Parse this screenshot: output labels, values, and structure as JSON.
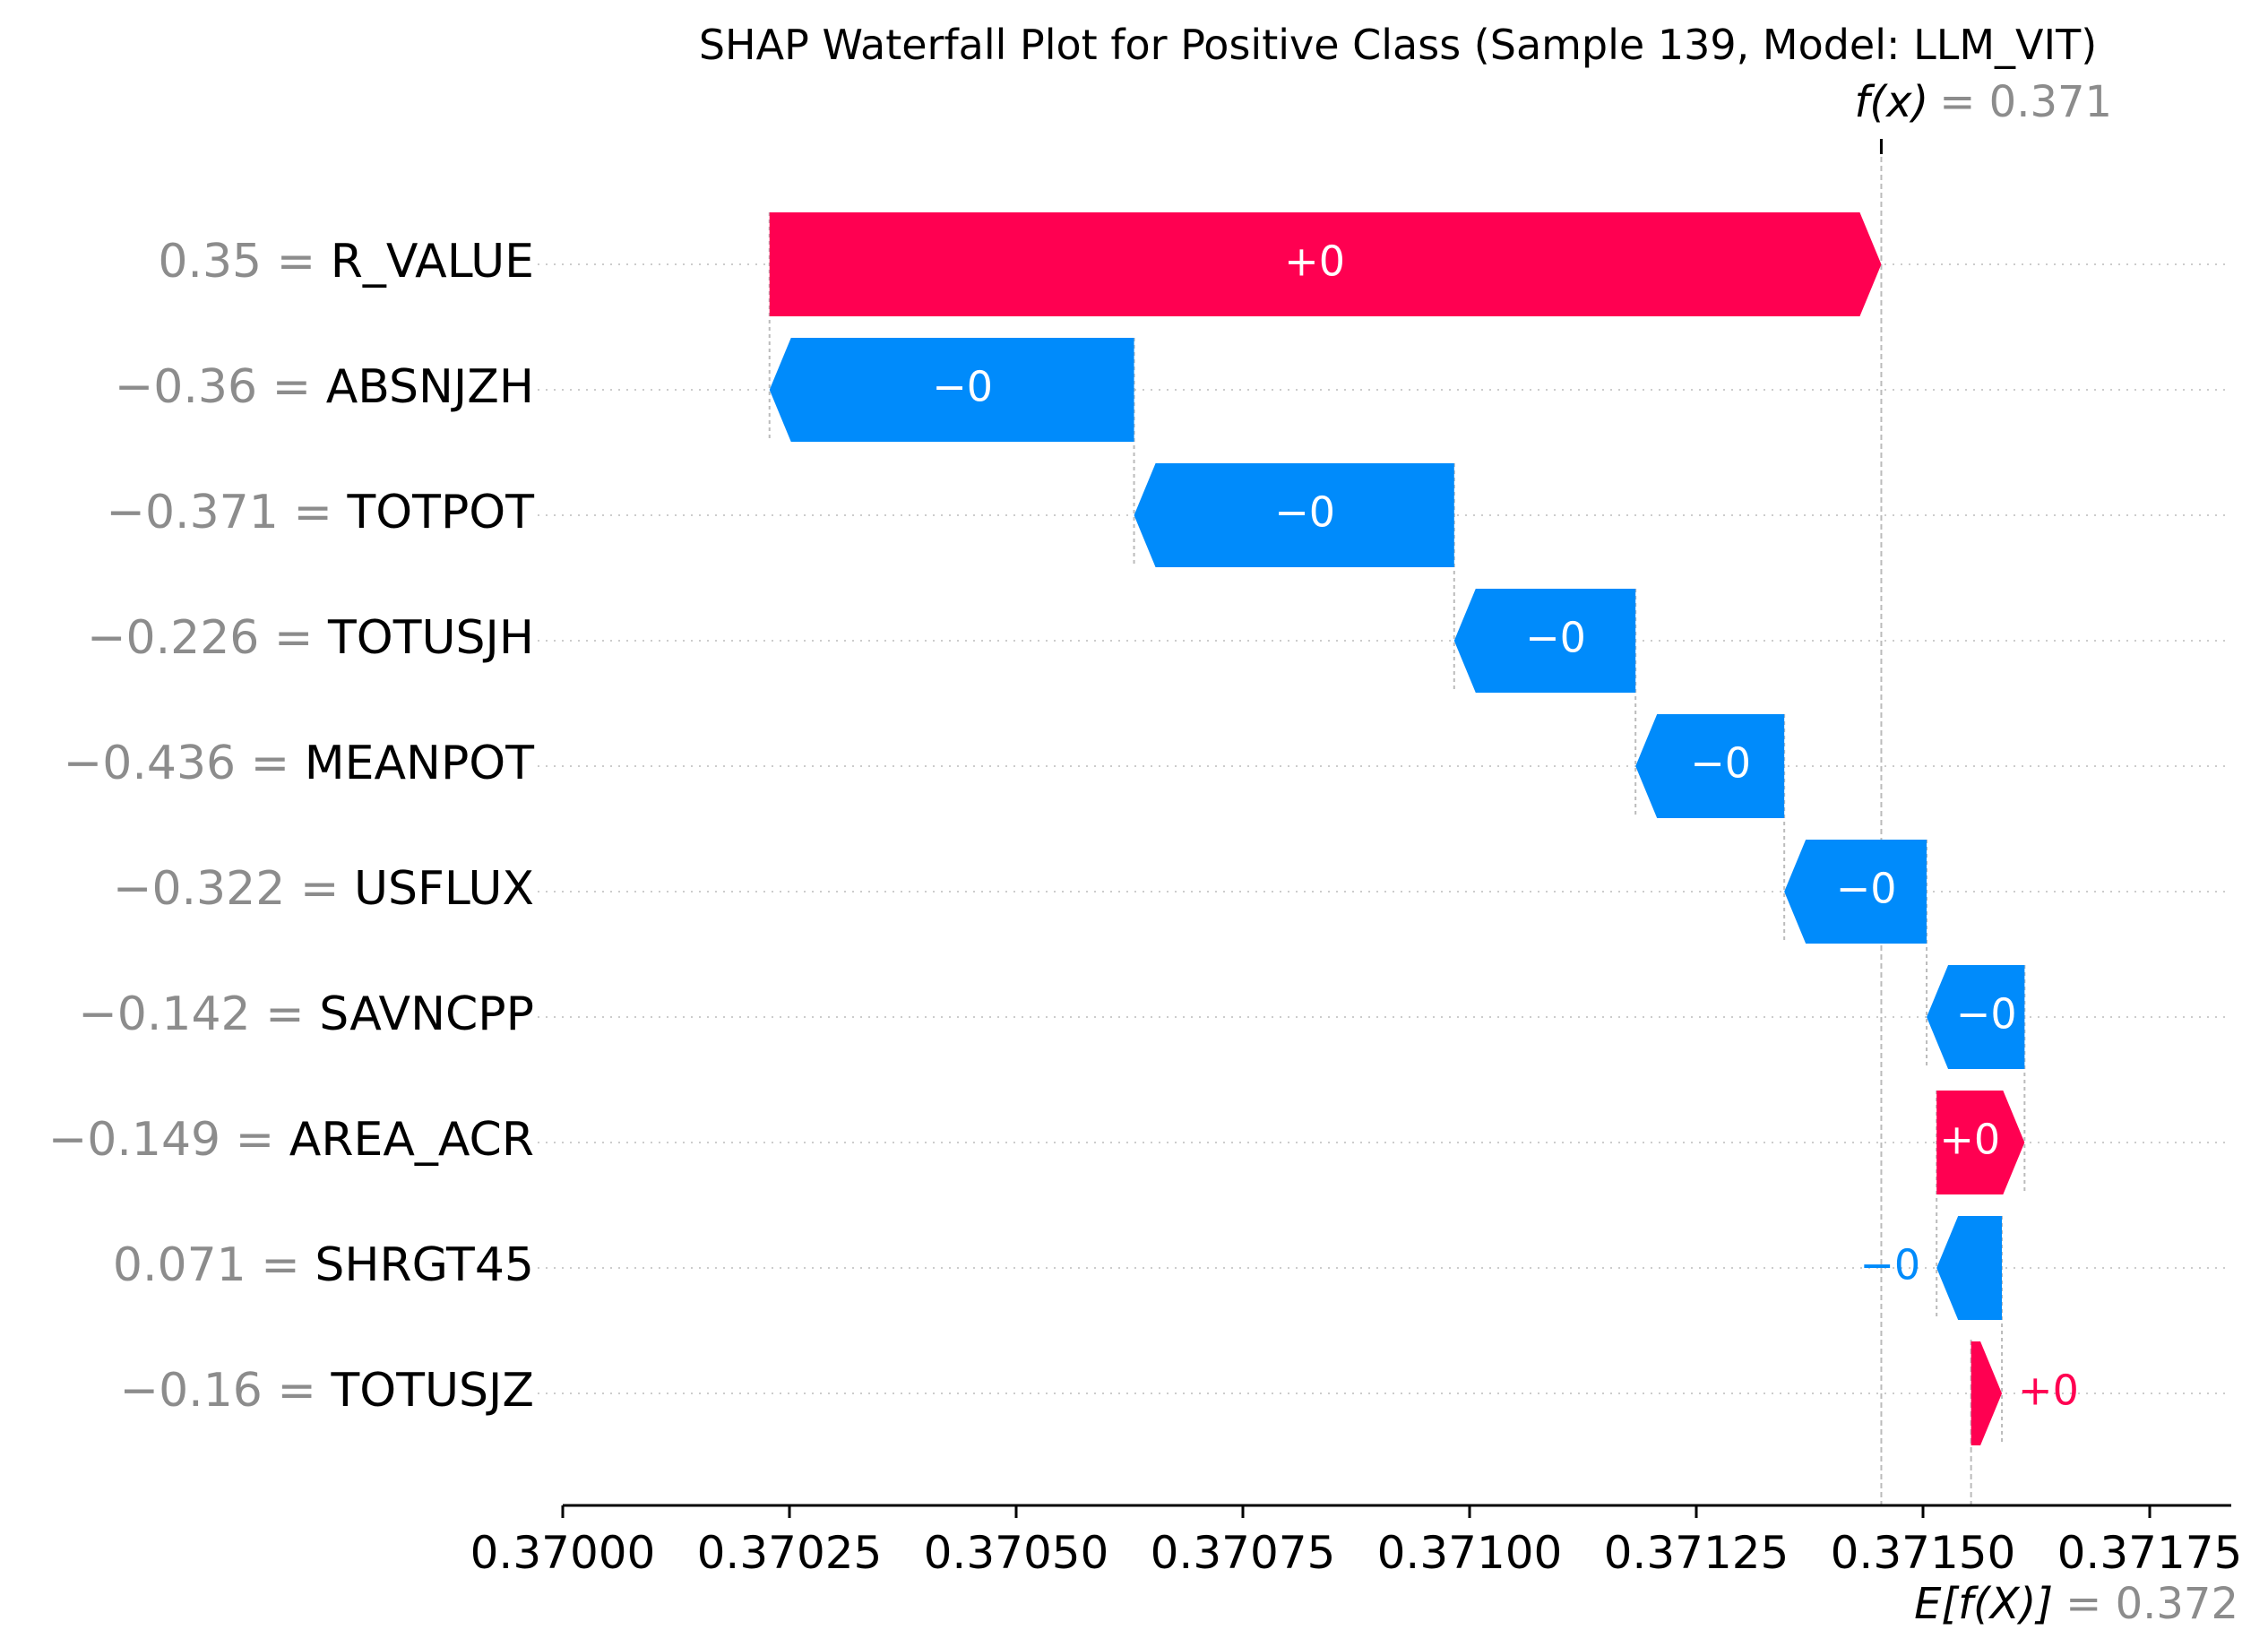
{
  "title": "SHAP Waterfall Plot for Positive Class (Sample 139, Model: LLM_VIT)",
  "colors": {
    "positive": "#ff0051",
    "negative": "#008bfb",
    "muted": "#8c8c8c"
  },
  "chart_data": {
    "type": "waterfall",
    "title": "SHAP Waterfall Plot for Positive Class (Sample 139, Model: LLM_VIT)",
    "xlim": [
      0.37,
      0.37185
    ],
    "x_ticks": [
      0.37,
      0.37025,
      0.3705,
      0.37075,
      0.371,
      0.37125,
      0.3715,
      0.37175
    ],
    "x_tick_labels": [
      "0.37000",
      "0.37025",
      "0.37050",
      "0.37075",
      "0.37100",
      "0.37125",
      "0.37150",
      "0.37175"
    ],
    "fx": {
      "value": 0.371454,
      "label": "f(x)",
      "value_text": "= 0.371"
    },
    "efx": {
      "value": 0.371553,
      "label": "E[f(X)]",
      "value_text": "= 0.372"
    },
    "features": [
      {
        "name": "R_VALUE",
        "value_text": "0.35 =",
        "start": 0.370228,
        "end": 0.371454,
        "label": "+0"
      },
      {
        "name": "ABSNJZH",
        "value_text": "−0.36 =",
        "start": 0.37063,
        "end": 0.370228,
        "label": "−0"
      },
      {
        "name": "TOTPOT",
        "value_text": "−0.371 =",
        "start": 0.370983,
        "end": 0.37063,
        "label": "−0"
      },
      {
        "name": "TOTUSJH",
        "value_text": "−0.226 =",
        "start": 0.371183,
        "end": 0.370983,
        "label": "−0"
      },
      {
        "name": "MEANPOT",
        "value_text": "−0.436 =",
        "start": 0.371347,
        "end": 0.371183,
        "label": "−0"
      },
      {
        "name": "USFLUX",
        "value_text": "−0.322 =",
        "start": 0.371504,
        "end": 0.371347,
        "label": "−0"
      },
      {
        "name": "SAVNCPP",
        "value_text": "−0.142 =",
        "start": 0.371612,
        "end": 0.371504,
        "label": "−0"
      },
      {
        "name": "AREA_ACR",
        "value_text": "−0.149 =",
        "start": 0.371515,
        "end": 0.371612,
        "label": "+0"
      },
      {
        "name": "SHRGT45",
        "value_text": "0.071 =",
        "start": 0.371587,
        "end": 0.371515,
        "label": "−0"
      },
      {
        "name": "TOTUSJZ",
        "value_text": "−0.16 =",
        "start": 0.371553,
        "end": 0.371587,
        "label": "+0"
      }
    ]
  }
}
